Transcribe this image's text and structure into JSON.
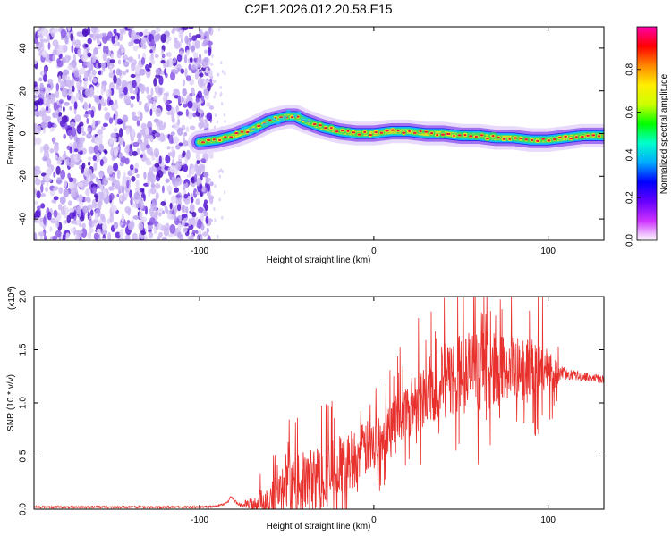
{
  "title": "C2E1.2026.012.20.58.E15",
  "colors": {
    "snr_line": "#e8312d",
    "ridge_core": "#e0203a",
    "noise_dot": "#5a1ed8",
    "noise_light": "#cdb8f2"
  },
  "chart_data": [
    {
      "type": "heatmap",
      "name": "spectrogram",
      "xlabel": "Height of straight line (km)",
      "ylabel": "Frequency (Hz)",
      "xlim": [
        -195,
        132
      ],
      "ylim": [
        -50,
        50
      ],
      "xticks": [
        -100,
        0,
        100
      ],
      "xtick_labels": [
        "-100",
        "0",
        "100"
      ],
      "yticks": [
        -40,
        -20,
        0,
        20,
        40
      ],
      "ytick_labels": [
        "-40",
        "-20",
        "0",
        "20",
        "40"
      ],
      "noise_region_x": [
        -195,
        -93
      ],
      "ridge_frequency": {
        "x": [
          -100,
          -90,
          -80,
          -70,
          -60,
          -50,
          -45,
          -40,
          -30,
          -20,
          -10,
          0,
          10,
          20,
          30,
          40,
          50,
          60,
          70,
          80,
          90,
          100,
          110,
          120,
          132
        ],
        "y": [
          -4,
          -3,
          -1,
          2,
          6,
          8,
          8,
          6,
          3,
          1,
          0,
          0,
          1,
          1,
          0,
          0,
          -1,
          -1,
          -2,
          -2,
          -3,
          -3,
          -2,
          -1,
          -1
        ]
      },
      "colorbar": {
        "label": "Normalized spectral amplitude",
        "range": [
          0,
          1
        ],
        "ticks": [
          0.0,
          0.2,
          0.4,
          0.6,
          0.8
        ],
        "tick_labels": [
          "0.0",
          "0.2",
          "0.4",
          "0.6",
          "0.8"
        ],
        "colormap": [
          "#ffffff",
          "#cc33ff",
          "#6600ff",
          "#0000ff",
          "#00aaff",
          "#00ffcc",
          "#00ff00",
          "#ccff00",
          "#ffee00",
          "#ff8800",
          "#ff0000",
          "#ff00aa"
        ]
      }
    },
    {
      "type": "line",
      "name": "snr",
      "xlabel": "Height of straight line (km)",
      "ylabel": "SNR (10 * v/v)",
      "multiplier_label": "(x10",
      "multiplier_exp": "4",
      "multiplier_close": ")",
      "xlim": [
        -195,
        132
      ],
      "ylim": [
        0,
        2.0
      ],
      "xticks": [
        -100,
        0,
        100
      ],
      "xtick_labels": [
        "-100",
        "0",
        "100"
      ],
      "yticks": [
        0.0,
        0.5,
        1.0,
        1.5,
        2.0
      ],
      "ytick_labels": [
        "0.0",
        "0.5",
        "1.0",
        "1.5",
        "2.0"
      ],
      "envelope": {
        "x": [
          -195,
          -150,
          -100,
          -90,
          -84,
          -82,
          -78,
          -70,
          -60,
          -50,
          -40,
          -30,
          -20,
          -10,
          0,
          10,
          20,
          30,
          40,
          50,
          60,
          70,
          80,
          90,
          100,
          106,
          110,
          120,
          132
        ],
        "mean": [
          0.02,
          0.02,
          0.02,
          0.03,
          0.06,
          0.12,
          0.04,
          0.05,
          0.1,
          0.18,
          0.25,
          0.3,
          0.4,
          0.5,
          0.62,
          0.8,
          0.95,
          1.1,
          1.2,
          1.28,
          1.3,
          1.32,
          1.3,
          1.3,
          1.28,
          1.28,
          1.27,
          1.25,
          1.22
        ],
        "spread": [
          0.01,
          0.01,
          0.01,
          0.01,
          0.01,
          0.01,
          0.02,
          0.06,
          0.18,
          0.25,
          0.3,
          0.32,
          0.3,
          0.28,
          0.25,
          0.25,
          0.27,
          0.32,
          0.35,
          0.4,
          0.4,
          0.35,
          0.32,
          0.3,
          0.28,
          0.1,
          0.05,
          0.04,
          0.04
        ]
      }
    }
  ]
}
